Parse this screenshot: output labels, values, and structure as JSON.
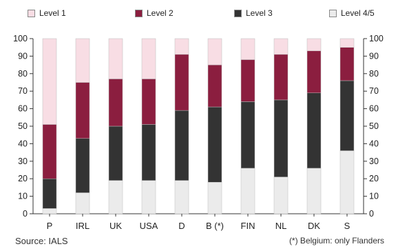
{
  "chart_data": {
    "type": "bar",
    "stacked": true,
    "percent": true,
    "categories": [
      "P",
      "IRL",
      "UK",
      "USA",
      "D",
      "B (*)",
      "FIN",
      "NL",
      "DK",
      "S"
    ],
    "series": [
      {
        "name": "Level 4/5",
        "color": "#ebebeb",
        "values": [
          3,
          12,
          19,
          19,
          19,
          18,
          26,
          21,
          26,
          36
        ]
      },
      {
        "name": "Level 3",
        "color": "#333333",
        "values": [
          17,
          31,
          31,
          32,
          40,
          43,
          38,
          44,
          43,
          40
        ]
      },
      {
        "name": "Level 2",
        "color": "#8b1e3f",
        "values": [
          31,
          32,
          27,
          26,
          32,
          24,
          24,
          26,
          24,
          19
        ]
      },
      {
        "name": "Level 1",
        "color": "#f8dde4",
        "values": [
          49,
          25,
          23,
          23,
          9,
          15,
          12,
          9,
          7,
          5
        ]
      }
    ],
    "legend_order": [
      "Level 1",
      "Level 2",
      "Level 3",
      "Level 4/5"
    ],
    "ylim": [
      0,
      100
    ],
    "yticks": [
      0,
      10,
      20,
      30,
      40,
      50,
      60,
      70,
      80,
      90,
      100
    ],
    "grid": false,
    "right_axis": true,
    "legend_position": "top",
    "xlabel": "",
    "ylabel": ""
  },
  "footer": {
    "source": "Source: IALS",
    "note": "(*) Belgium: only Flanders"
  }
}
